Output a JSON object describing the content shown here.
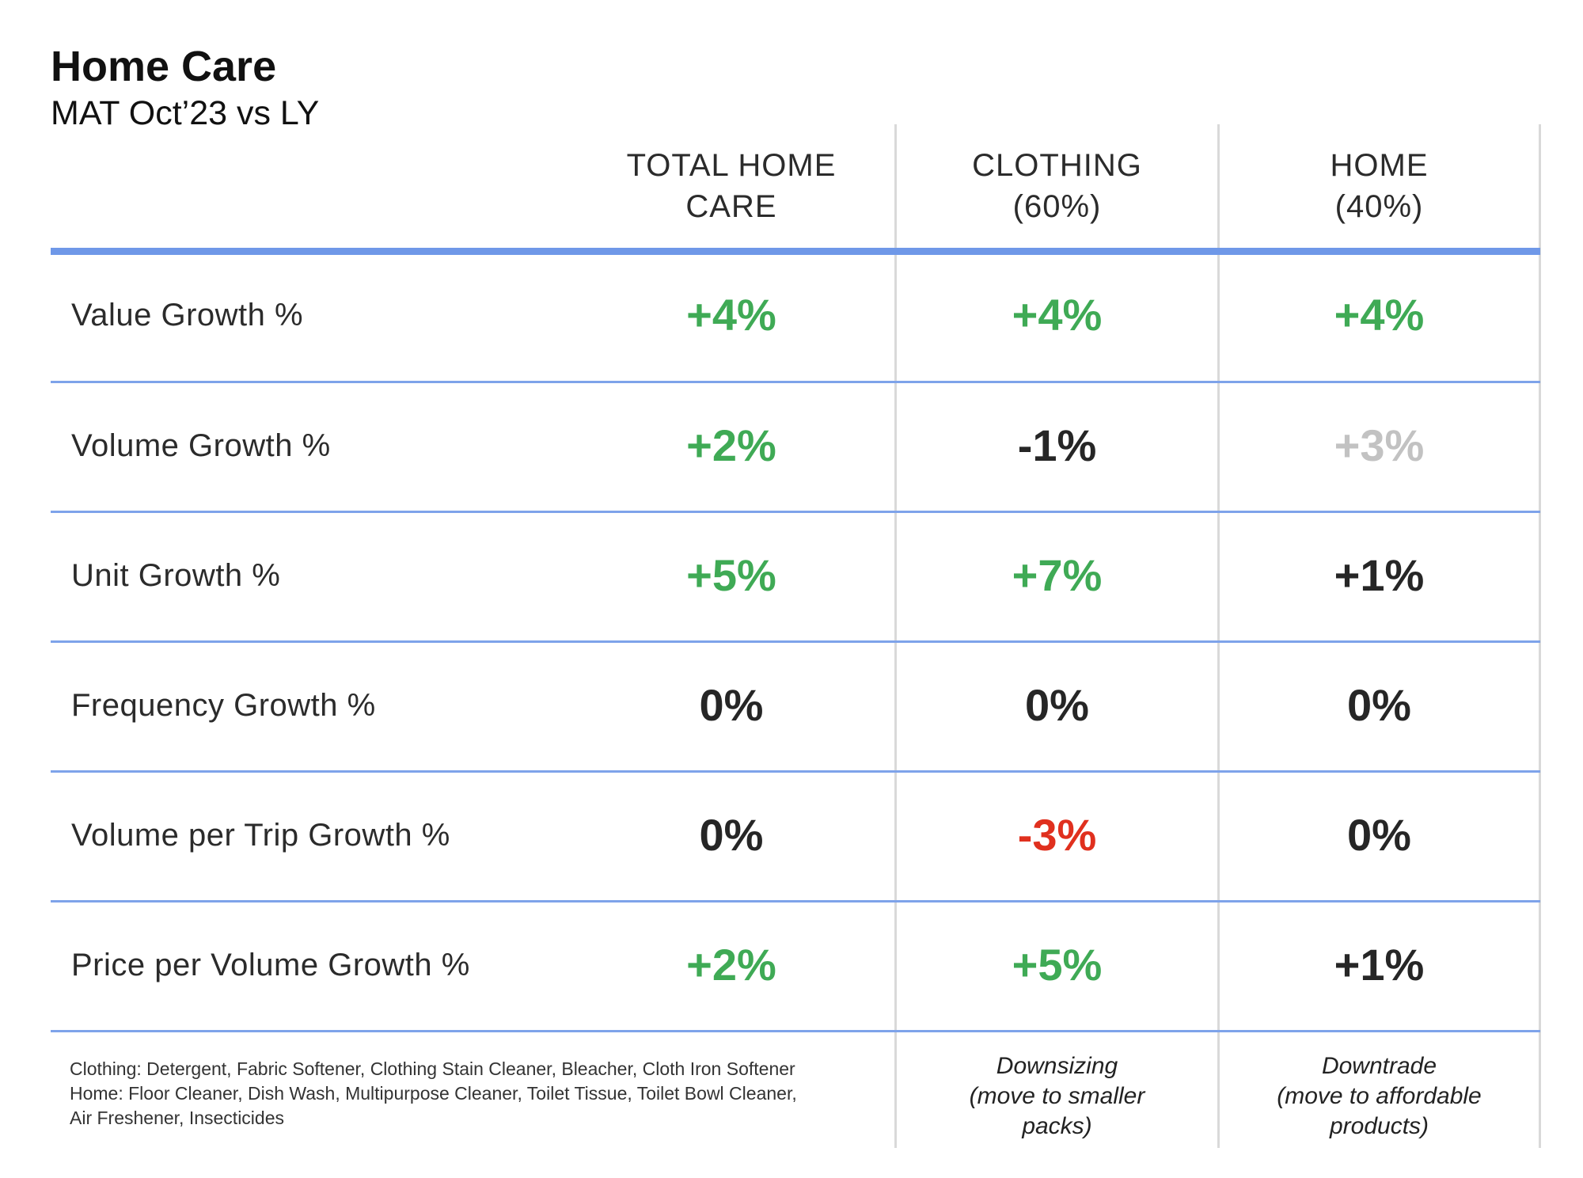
{
  "header": {
    "title": "Home Care",
    "subtitle": "MAT Oct’23 vs LY"
  },
  "columns": [
    {
      "label": "TOTAL HOME\nCARE"
    },
    {
      "label": "CLOTHING\n(60%)"
    },
    {
      "label": "HOME\n(40%)"
    }
  ],
  "rows": [
    {
      "label": "Value Growth %",
      "values": [
        "+4%",
        "+4%",
        "+4%"
      ]
    },
    {
      "label": "Volume Growth %",
      "values": [
        "+2%",
        "-1%",
        "+3%"
      ]
    },
    {
      "label": "Unit Growth %",
      "values": [
        "+5%",
        "+7%",
        "+1%"
      ]
    },
    {
      "label": "Frequency Growth %",
      "values": [
        "0%",
        "0%",
        "0%"
      ]
    },
    {
      "label": "Volume per Trip Growth %",
      "values": [
        "0%",
        "-3%",
        "0%"
      ]
    },
    {
      "label": "Price per Volume Growth %",
      "values": [
        "+2%",
        "+5%",
        "+1%"
      ]
    }
  ],
  "colors": {
    "positive": "#3faa55",
    "neutral": "#262626",
    "muted": "#c2c2c2",
    "negative": "#e0301e",
    "accent_rule": "#6f98e8"
  },
  "footnote": {
    "lines": [
      "Clothing: Detergent, Fabric Softener, Clothing Stain Cleaner, Bleacher, Cloth Iron Softener",
      "Home: Floor Cleaner, Dish Wash, Multipurpose Cleaner, Toilet Tissue, Toilet Bowl Cleaner,",
      "Air Freshener, Insecticides"
    ]
  },
  "notes": {
    "clothing": [
      "Downsizing",
      "(move to smaller",
      "packs)"
    ],
    "home": [
      "Downtrade",
      "(move to affordable",
      "products)"
    ]
  }
}
